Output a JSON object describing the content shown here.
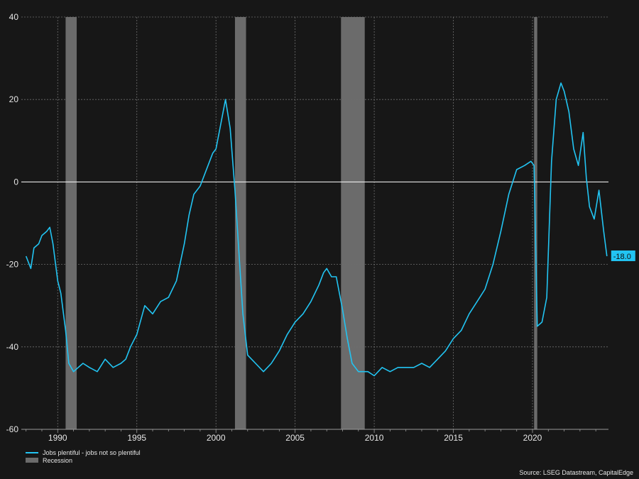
{
  "chart_data": {
    "type": "line",
    "x_unit": "year",
    "xlim": [
      1987.7,
      2024.8
    ],
    "ylim": [
      -60,
      40
    ],
    "yticks": [
      40,
      20,
      0,
      -20,
      -40,
      -60
    ],
    "xticks": [
      1990,
      1995,
      2000,
      2005,
      2010,
      2015,
      2020
    ],
    "grid": true,
    "zero_line": true,
    "legend_position": "bottom-left",
    "series": [
      {
        "name": "Jobs plentiful - jobs not so plentiful",
        "color": "#22c4f2",
        "x": [
          1988.0,
          1988.3,
          1988.5,
          1988.8,
          1989.0,
          1989.3,
          1989.5,
          1989.7,
          1990.0,
          1990.2,
          1990.5,
          1990.7,
          1991.0,
          1991.3,
          1991.6,
          1992.0,
          1992.5,
          1993.0,
          1993.5,
          1994.0,
          1994.3,
          1994.6,
          1995.0,
          1995.5,
          1996.0,
          1996.5,
          1997.0,
          1997.5,
          1998.0,
          1998.3,
          1998.6,
          1999.0,
          1999.5,
          1999.8,
          2000.0,
          2000.3,
          2000.6,
          2000.9,
          2001.2,
          2001.5,
          2001.7,
          2002.0,
          2002.5,
          2003.0,
          2003.5,
          2004.0,
          2004.5,
          2005.0,
          2005.5,
          2006.0,
          2006.5,
          2006.8,
          2007.0,
          2007.3,
          2007.6,
          2008.0,
          2008.3,
          2008.6,
          2009.0,
          2009.3,
          2009.6,
          2010.0,
          2010.5,
          2011.0,
          2011.5,
          2012.0,
          2012.5,
          2013.0,
          2013.5,
          2014.0,
          2014.5,
          2015.0,
          2015.5,
          2016.0,
          2016.5,
          2017.0,
          2017.5,
          2018.0,
          2018.5,
          2019.0,
          2019.5,
          2019.9,
          2020.1,
          2020.3,
          2020.6,
          2020.9,
          2021.2,
          2021.5,
          2021.8,
          2022.0,
          2022.3,
          2022.6,
          2022.9,
          2023.2,
          2023.4,
          2023.6,
          2023.9,
          2024.2,
          2024.5,
          2024.7
        ],
        "values": [
          -18,
          -21,
          -16,
          -15,
          -13,
          -12,
          -11,
          -15,
          -24,
          -27,
          -36,
          -44,
          -46,
          -45,
          -44,
          -45,
          -46,
          -43,
          -45,
          -44,
          -43,
          -40,
          -37,
          -30,
          -32,
          -29,
          -28,
          -24,
          -15,
          -8,
          -3,
          -1,
          4,
          7,
          8,
          14,
          20,
          13,
          -2,
          -20,
          -32,
          -42,
          -44,
          -46,
          -44,
          -41,
          -37,
          -34,
          -32,
          -29,
          -25,
          -22,
          -21,
          -23,
          -23,
          -31,
          -38,
          -44,
          -46,
          -46,
          -46,
          -47,
          -45,
          -46,
          -45,
          -45,
          -45,
          -44,
          -45,
          -43,
          -41,
          -38,
          -36,
          -32,
          -29,
          -26,
          -20,
          -12,
          -3,
          3,
          4,
          5,
          4,
          -35,
          -34,
          -28,
          5,
          20,
          24,
          22,
          17,
          8,
          4,
          12,
          1,
          -6,
          -9,
          -2,
          -12,
          -18
        ]
      }
    ],
    "recessions": [
      {
        "start": 1990.5,
        "end": 1991.2
      },
      {
        "start": 2001.2,
        "end": 2001.9
      },
      {
        "start": 2007.9,
        "end": 2009.4
      },
      {
        "start": 2020.1,
        "end": 2020.3
      }
    ],
    "end_label": "-18.0",
    "legend": {
      "line_label": "Jobs plentiful - jobs not so plentiful",
      "recession_label": "Recession"
    },
    "source": "Source: LSEG Datastream, CapitalEdge"
  }
}
